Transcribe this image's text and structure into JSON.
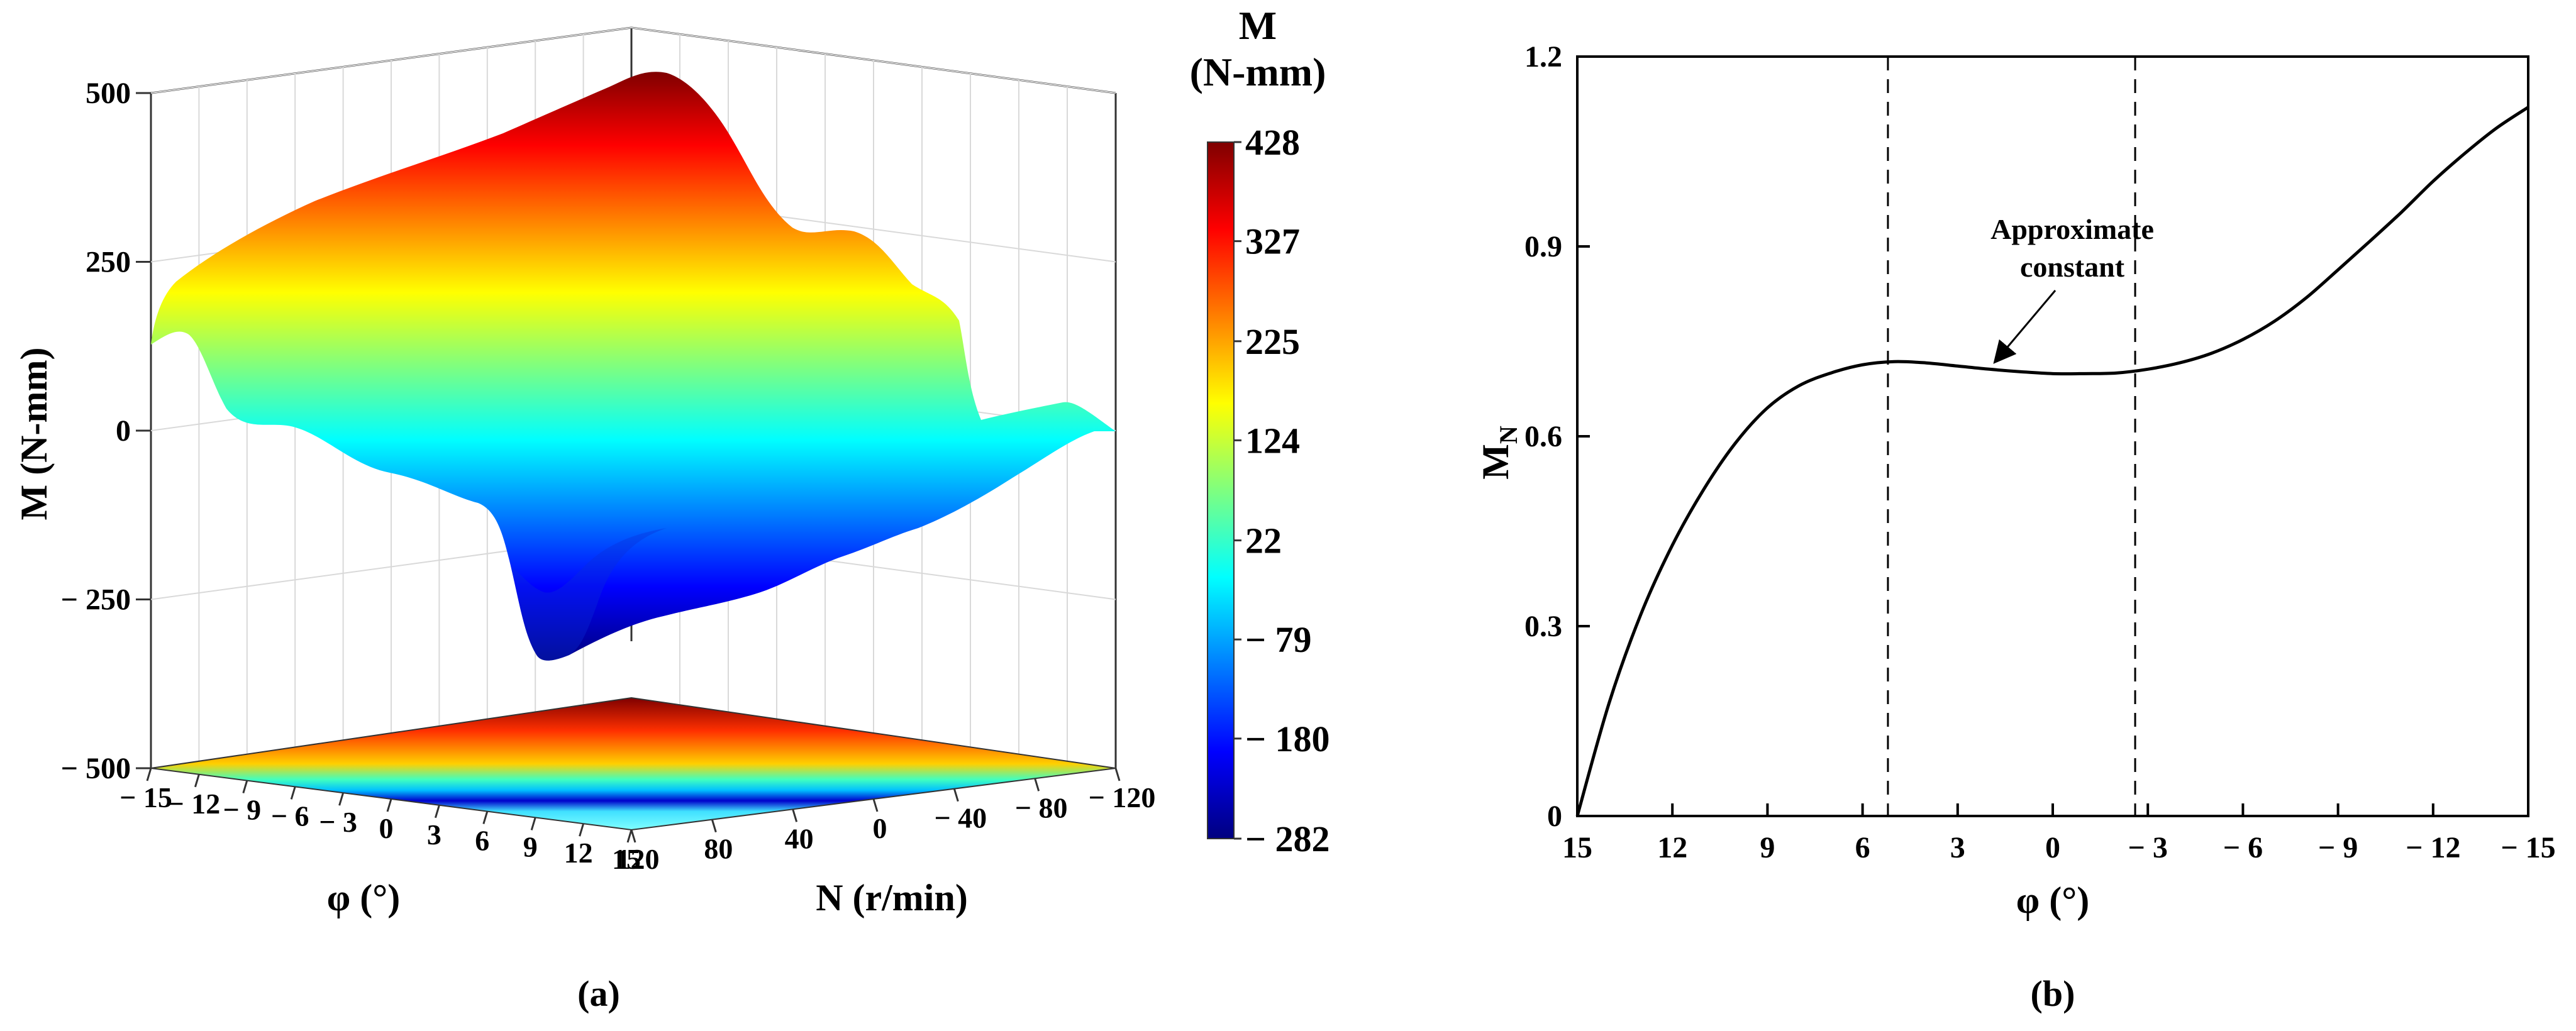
{
  "chart_data": [
    {
      "type": "surface",
      "panel_label": "(a)",
      "zlabel": "M (N-mm)",
      "xlabel": "φ (°)",
      "ylabel": "N (r/min)",
      "z_ticks": [
        "500",
        "250",
        "0",
        "− 250",
        "− 500"
      ],
      "z_tick_values": [
        500,
        250,
        0,
        -250,
        -500
      ],
      "zlim": [
        -500,
        500
      ],
      "phi_ticks": [
        "− 15",
        "− 12",
        "− 9",
        "− 6",
        "− 3",
        "0",
        "3",
        "6",
        "9",
        "12",
        "15"
      ],
      "phi_tick_values": [
        -15,
        -12,
        -9,
        -6,
        -3,
        0,
        3,
        6,
        9,
        12,
        15
      ],
      "n_ticks": [
        "120",
        "80",
        "40",
        "0",
        "− 40",
        "− 80",
        "− 120"
      ],
      "n_tick_values": [
        120,
        80,
        40,
        0,
        -40,
        -80,
        -120
      ],
      "colorbar": {
        "title_line1": "M",
        "title_line2": "(N-mm)",
        "ticks": [
          "428",
          "327",
          "225",
          "124",
          "22",
          "− 79",
          "− 180",
          "− 282"
        ],
        "tick_values": [
          428,
          327,
          225,
          124,
          22,
          -79,
          -180,
          -282
        ],
        "range": [
          -282,
          428
        ],
        "colormap": [
          "#00007f",
          "#0000ff",
          "#007fff",
          "#00ffff",
          "#7fff7f",
          "#ffff00",
          "#ff7f00",
          "#ff0000",
          "#7f0000"
        ]
      },
      "surface_corners": [
        {
          "phi": -15,
          "N": 120,
          "M": 120
        },
        {
          "phi": -15,
          "N": -120,
          "M": 428
        },
        {
          "phi": 15,
          "N": -120,
          "M": 20
        },
        {
          "phi": 15,
          "N": 120,
          "M": -282
        }
      ]
    },
    {
      "type": "line",
      "panel_label": "(b)",
      "xlabel": "φ (°)",
      "ylabel_main": "M",
      "ylabel_sub": "N",
      "x_ticks": [
        "15",
        "12",
        "9",
        "6",
        "3",
        "0",
        "− 3",
        "− 6",
        "− 9",
        "− 12",
        "− 15"
      ],
      "x_tick_values": [
        15,
        12,
        9,
        6,
        3,
        0,
        -3,
        -6,
        -9,
        -12,
        -15
      ],
      "xlim": [
        15,
        -15
      ],
      "y_ticks": [
        "0",
        "0.3",
        "0.6",
        "0.9",
        "1.2"
      ],
      "y_tick_values": [
        0,
        0.3,
        0.6,
        0.9,
        1.2
      ],
      "ylim": [
        0,
        1.2
      ],
      "series": [
        {
          "x": [
            15,
            14,
            13,
            12,
            11,
            10,
            9,
            8,
            7,
            6,
            5,
            4,
            3,
            2,
            1,
            0,
            -1,
            -2,
            -3,
            -4,
            -5,
            -6,
            -7,
            -8,
            -9,
            -10,
            -11,
            -12,
            -13,
            -14,
            -15
          ],
          "values": [
            0.0,
            0.178,
            0.318,
            0.428,
            0.517,
            0.59,
            0.645,
            0.68,
            0.7,
            0.713,
            0.718,
            0.716,
            0.711,
            0.706,
            0.702,
            0.699,
            0.699,
            0.7,
            0.706,
            0.716,
            0.731,
            0.753,
            0.782,
            0.819,
            0.863,
            0.908,
            0.954,
            1.003,
            1.047,
            1.087,
            1.12
          ]
        }
      ],
      "vlines": [
        5.2,
        -2.6
      ],
      "annotation": {
        "line1": "Approximate",
        "line2": "constant",
        "arrow_to": {
          "x": 1.8,
          "y": 0.705
        }
      }
    }
  ]
}
